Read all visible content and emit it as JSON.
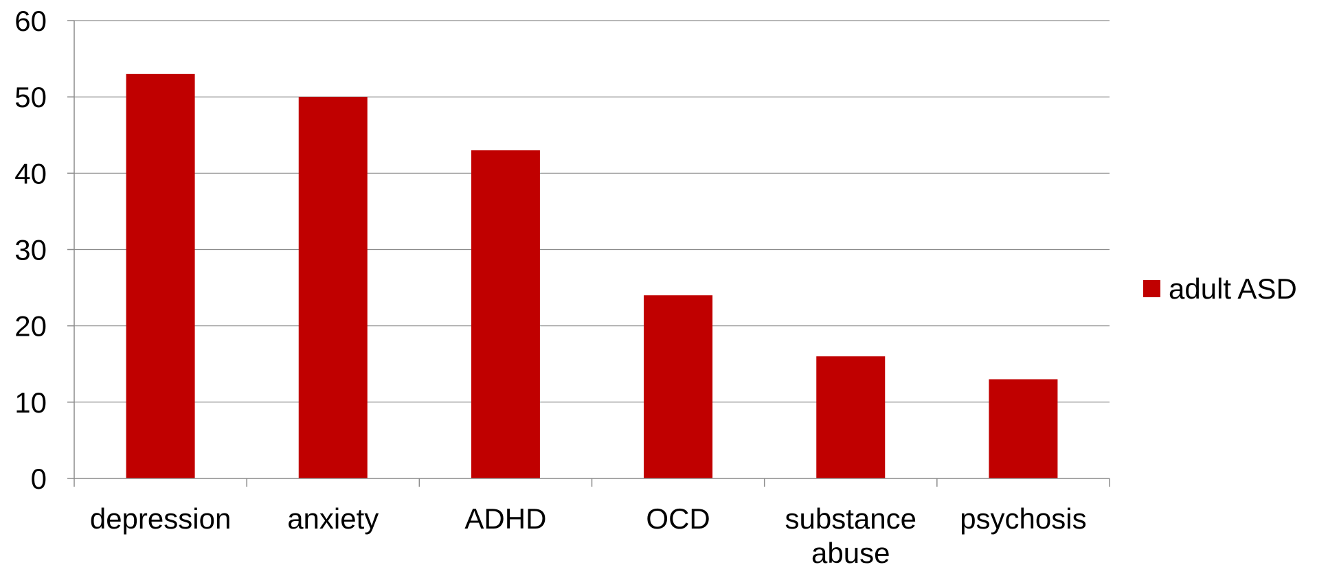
{
  "chart_data": {
    "type": "bar",
    "title": "",
    "xlabel": "",
    "ylabel": "",
    "categories": [
      "depression",
      "anxiety",
      "ADHD",
      "OCD",
      "substance abuse",
      "psychosis"
    ],
    "series": [
      {
        "name": "adult ASD",
        "color": "#C00000",
        "values": [
          53,
          50,
          43,
          24,
          16,
          13
        ]
      }
    ],
    "ylim": [
      0,
      60
    ],
    "yticks": [
      0,
      10,
      20,
      30,
      40,
      50,
      60
    ],
    "grid": true,
    "legend": "right"
  }
}
